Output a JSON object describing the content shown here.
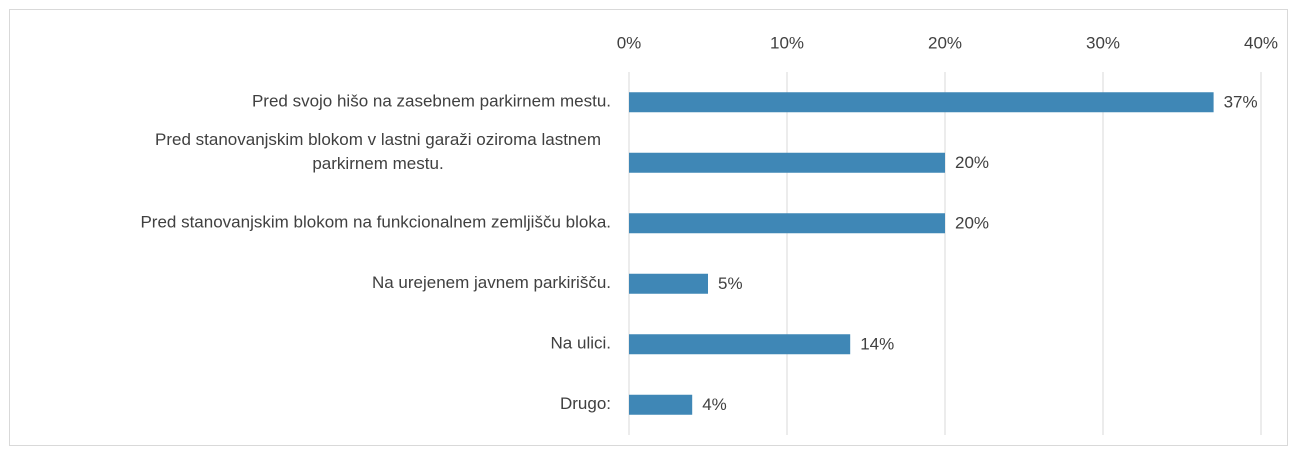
{
  "chart_data": {
    "type": "hbar",
    "categories": [
      "Pred svojo hišo na zasebnem parkirnem mestu.",
      "Pred stanovanjskim blokom v lastni garaži oziroma lastnem parkirnem mestu.",
      "Pred stanovanjskim blokom na funkcionalnem zemljišču bloka.",
      "Na urejenem javnem parkirišču.",
      "Na ulici.",
      "Drugo:"
    ],
    "values": [
      37,
      20,
      20,
      5,
      14,
      4
    ],
    "value_labels": [
      "37%",
      "20%",
      "20%",
      "5%",
      "14%",
      "4%"
    ],
    "color": "#3f87b6",
    "xlim": [
      0,
      40
    ],
    "xticks": [
      {
        "value": 0,
        "label": "0%"
      },
      {
        "value": 10,
        "label": "10%"
      },
      {
        "value": 20,
        "label": "20%"
      },
      {
        "value": 30,
        "label": "30%"
      },
      {
        "value": 40,
        "label": "40%"
      }
    ],
    "grid": true
  }
}
